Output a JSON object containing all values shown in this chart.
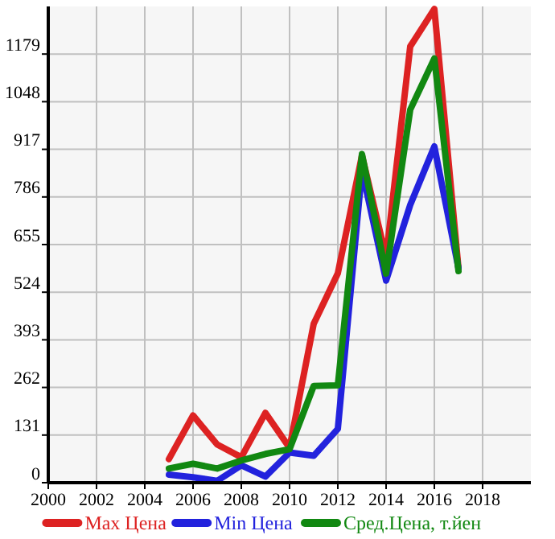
{
  "chart_data": {
    "type": "line",
    "x": [
      2005,
      2006,
      2007,
      2008,
      2009,
      2010,
      2011,
      2012,
      2013,
      2014,
      2015,
      2016,
      2017
    ],
    "series": [
      {
        "name": "Max Цена",
        "color": "#dd2222",
        "values": [
          65,
          185,
          105,
          70,
          192,
          96,
          437,
          576,
          900,
          620,
          1200,
          1303,
          590
        ]
      },
      {
        "name": "Min Цена",
        "color": "#2222dd",
        "values": [
          22,
          15,
          5,
          48,
          17,
          83,
          74,
          148,
          860,
          556,
          764,
          925,
          590
        ]
      },
      {
        "name": "Сред.Цена, т.йен",
        "color": "#118811",
        "values": [
          39,
          52,
          39,
          61,
          79,
          92,
          266,
          268,
          904,
          575,
          1026,
          1167,
          582
        ]
      }
    ],
    "xlim": [
      2000,
      2020
    ],
    "xticks": [
      2000,
      2002,
      2004,
      2006,
      2008,
      2010,
      2012,
      2014,
      2016,
      2018
    ],
    "ylim": [
      0,
      1310
    ],
    "yticks": [
      0,
      131,
      262,
      393,
      524,
      655,
      786,
      917,
      1048,
      1179
    ],
    "grid": true,
    "legend": "bottom",
    "marker": "none",
    "line_style": "solid"
  }
}
